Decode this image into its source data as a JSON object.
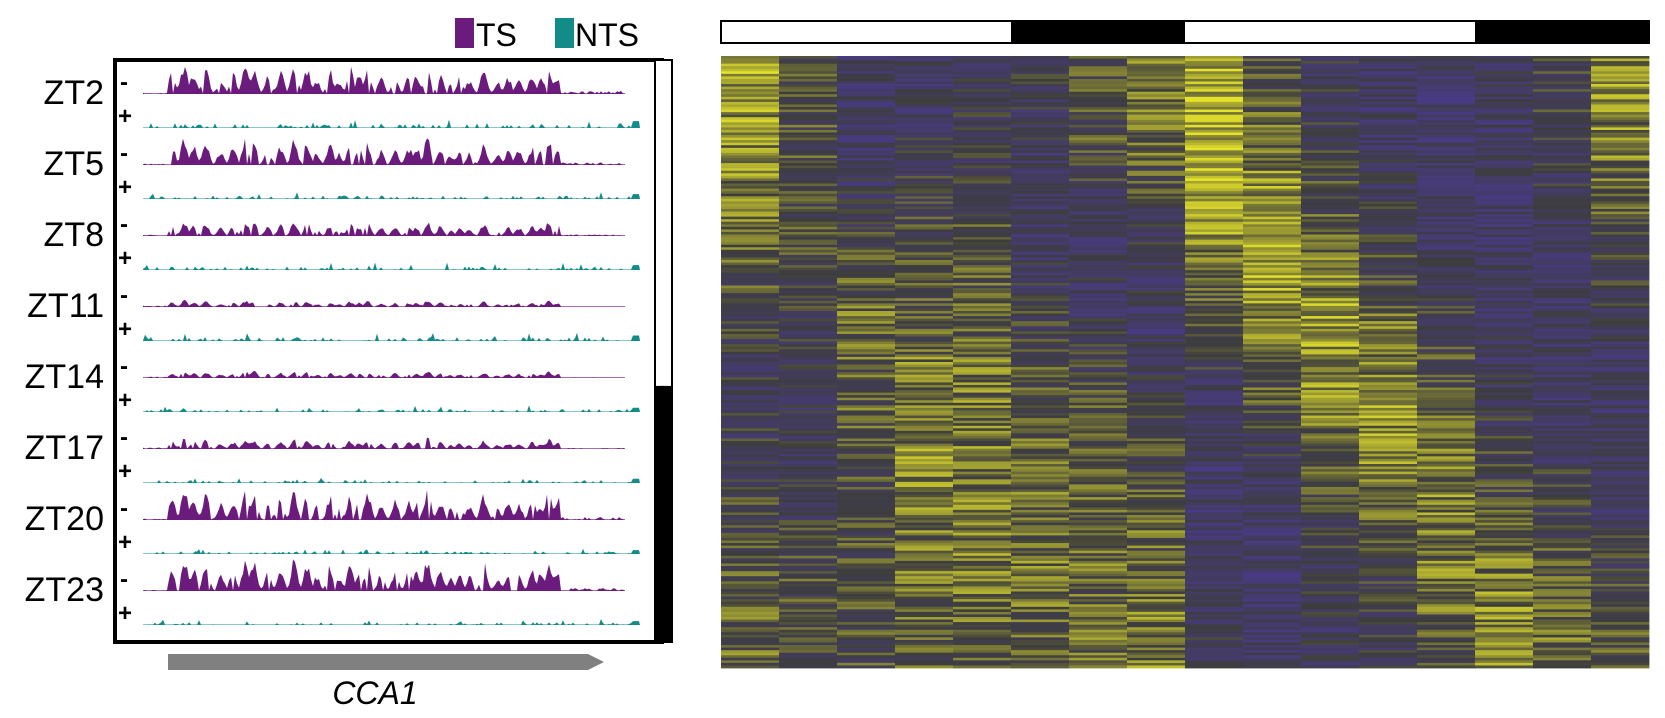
{
  "colors": {
    "ts": "#6a1b7c",
    "nts": "#138c88",
    "gene_arrow": "#808080",
    "heat_low": "#4a3a8c",
    "heat_mid": "#3d3d3d",
    "heat_high": "#e4e22a",
    "light_period": "#ffffff",
    "dark_period": "#000000"
  },
  "chart_data": [
    {
      "type": "area",
      "gene": "CCA1",
      "legend": [
        {
          "name": "TS",
          "color": "#6a1b7c"
        },
        {
          "name": "NTS",
          "color": "#138c88"
        }
      ],
      "strands": {
        "ts": "-",
        "nts": "+"
      },
      "rows": [
        {
          "label": "ZT2",
          "ts_level": 1.0,
          "nts_level": 0.35
        },
        {
          "label": "ZT5",
          "ts_level": 0.9,
          "nts_level": 0.25
        },
        {
          "label": "ZT8",
          "ts_level": 0.5,
          "nts_level": 0.25
        },
        {
          "label": "ZT11",
          "ts_level": 0.22,
          "nts_level": 0.28
        },
        {
          "label": "ZT14",
          "ts_level": 0.25,
          "nts_level": 0.22
        },
        {
          "label": "ZT17",
          "ts_level": 0.35,
          "nts_level": 0.22
        },
        {
          "label": "ZT20",
          "ts_level": 1.0,
          "nts_level": 0.2
        },
        {
          "label": "ZT23",
          "ts_level": 1.1,
          "nts_level": 0.2
        }
      ],
      "light_dark_bar": [
        {
          "period": "light",
          "fraction": 0.56
        },
        {
          "period": "dark",
          "fraction": 0.44
        }
      ]
    },
    {
      "type": "heatmap",
      "columns": 16,
      "column_pattern": [
        0.8,
        -0.1,
        -0.5,
        -0.3,
        0.0,
        -0.4,
        0.3,
        0.6,
        0.4,
        -0.6,
        -0.7,
        -0.6,
        -0.5,
        -0.4,
        -0.1,
        0.5
      ],
      "column_means": [
        [
          0.8,
          0.6,
          0.4,
          -0.2,
          -0.4,
          -0.1,
          0.1,
          0.3
        ],
        [
          0.0,
          0.0,
          0.0,
          -0.3,
          -0.5,
          -0.3,
          0.0,
          0.0
        ],
        [
          -0.6,
          -0.6,
          -0.2,
          0.3,
          0.2,
          0.0,
          0.0,
          0.0
        ],
        [
          -0.6,
          -0.4,
          0.0,
          0.2,
          0.6,
          0.5,
          0.3,
          0.1
        ],
        [
          -0.4,
          -0.3,
          0.0,
          0.3,
          0.4,
          0.5,
          0.4,
          0.2
        ],
        [
          -0.3,
          -0.5,
          -0.6,
          -0.2,
          0.2,
          0.3,
          0.4,
          0.2
        ],
        [
          0.2,
          0.0,
          -0.5,
          -0.5,
          0.1,
          0.2,
          0.3,
          0.3
        ],
        [
          0.6,
          0.3,
          -0.3,
          -0.6,
          -0.3,
          0.1,
          0.4,
          0.5
        ],
        [
          0.9,
          1.0,
          0.7,
          0.0,
          -0.6,
          -0.7,
          -0.6,
          -0.4
        ],
        [
          -0.1,
          0.4,
          0.9,
          0.6,
          0.0,
          -0.5,
          -0.7,
          -0.6
        ],
        [
          -0.4,
          -0.3,
          0.2,
          0.8,
          0.6,
          0.0,
          -0.4,
          -0.5
        ],
        [
          -0.6,
          -0.6,
          -0.3,
          0.3,
          0.7,
          0.4,
          -0.2,
          -0.4
        ],
        [
          -0.7,
          -0.7,
          -0.5,
          -0.2,
          0.2,
          0.5,
          0.4,
          0.0
        ],
        [
          -0.5,
          -0.6,
          -0.7,
          -0.6,
          -0.4,
          0.1,
          0.5,
          0.6
        ],
        [
          -0.1,
          -0.3,
          -0.5,
          -0.6,
          -0.5,
          -0.2,
          0.2,
          0.4
        ],
        [
          0.7,
          0.5,
          0.0,
          -0.4,
          -0.6,
          -0.5,
          -0.1,
          0.3
        ]
      ],
      "light_dark_bar": [
        {
          "period": "light",
          "columns": 5
        },
        {
          "period": "dark",
          "columns": 3
        },
        {
          "period": "light",
          "columns": 5
        },
        {
          "period": "dark",
          "columns": 3
        }
      ]
    }
  ]
}
